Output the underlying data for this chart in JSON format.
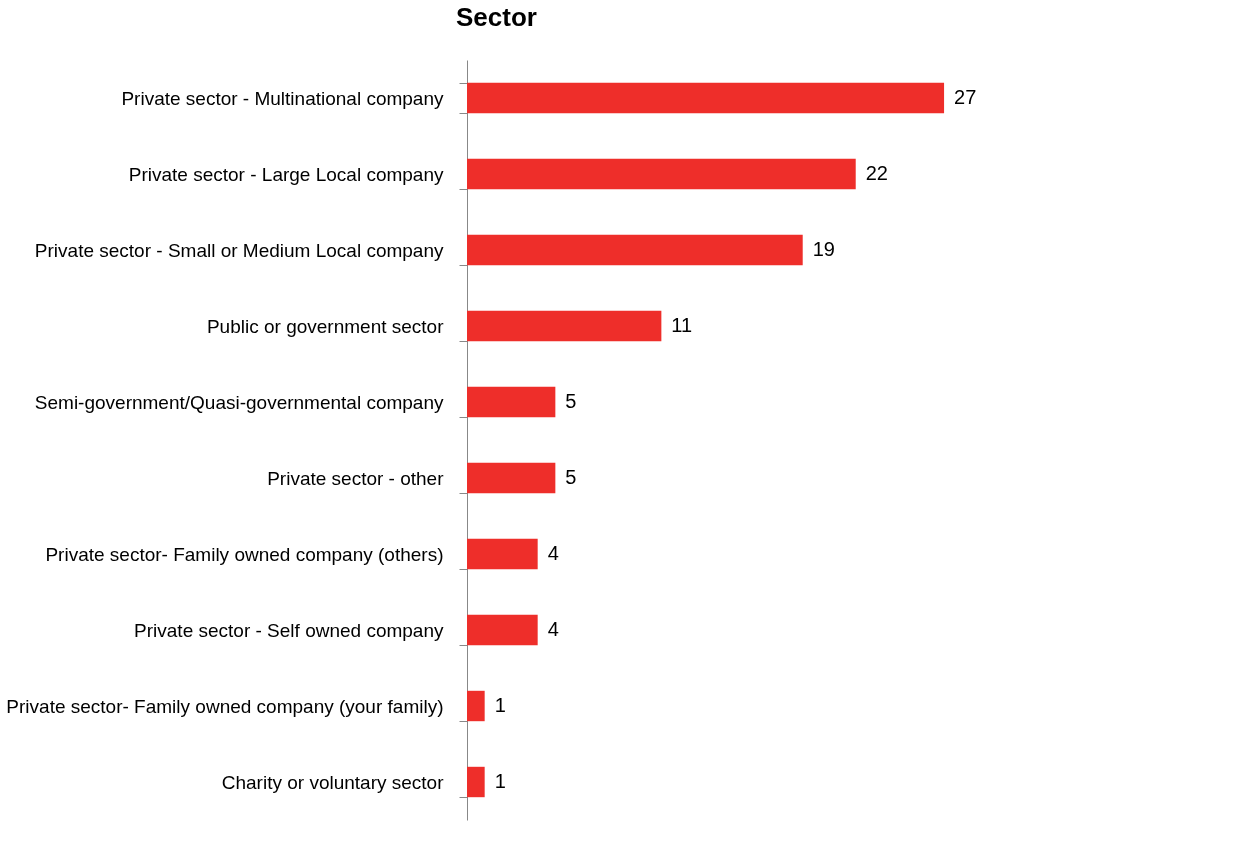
{
  "chart_data": {
    "type": "bar",
    "orientation": "horizontal",
    "title": "Sector",
    "categories": [
      "Private sector - Multinational company",
      "Private sector - Large Local company",
      "Private sector - Small or Medium Local company",
      "Public or government sector",
      "Semi-government/Quasi-governmental  company",
      "Private sector - other",
      "Private sector- Family owned company (others)",
      "Private sector - Self owned company",
      "Private sector- Family owned company (your family)",
      "Charity or voluntary sector"
    ],
    "values": [
      27,
      22,
      19,
      11,
      5,
      5,
      4,
      4,
      1,
      1
    ],
    "color": "#ee2e2a",
    "data_labels": true,
    "grid": false,
    "tick_labels": "y"
  }
}
